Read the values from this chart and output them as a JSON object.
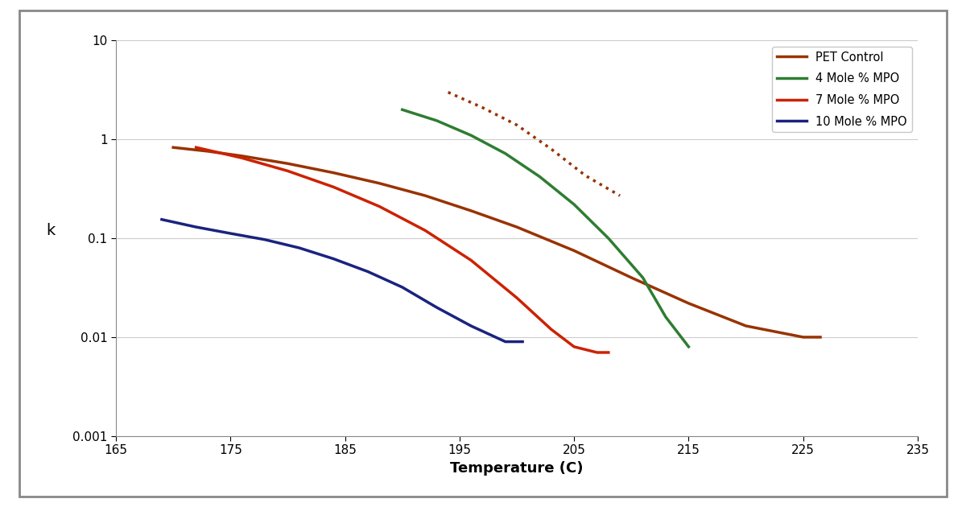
{
  "title": "",
  "xlabel": "Temperature (C)",
  "ylabel": "k",
  "xlim": [
    165,
    235
  ],
  "ylim_log": [
    0.001,
    10
  ],
  "xticks": [
    165,
    175,
    185,
    195,
    205,
    215,
    225,
    235
  ],
  "yticks": [
    0.001,
    0.01,
    0.1,
    1,
    10
  ],
  "background_outer": "#ffffff",
  "background_plot": "#ffffff",
  "border_color": "#888888",
  "series": [
    {
      "label": "PET Control",
      "color": "#993300",
      "linestyle": "solid",
      "linewidth": 2.5,
      "x": [
        170,
        173,
        176,
        180,
        184,
        188,
        192,
        196,
        200,
        205,
        210,
        215,
        220,
        225,
        226.5
      ],
      "y": [
        0.83,
        0.76,
        0.68,
        0.57,
        0.46,
        0.36,
        0.27,
        0.19,
        0.13,
        0.075,
        0.04,
        0.022,
        0.013,
        0.01,
        0.01
      ]
    },
    {
      "label": "4 Mole % MPO",
      "color": "#2E7D32",
      "linestyle": "solid",
      "linewidth": 2.5,
      "x": [
        190,
        193,
        196,
        199,
        202,
        205,
        208,
        211,
        213,
        215
      ],
      "y": [
        2.0,
        1.55,
        1.1,
        0.72,
        0.42,
        0.22,
        0.1,
        0.04,
        0.016,
        0.008
      ]
    },
    {
      "label": "7 Mole % MPO",
      "color": "#CC2200",
      "linestyle": "solid",
      "linewidth": 2.5,
      "x": [
        172,
        176,
        180,
        184,
        188,
        192,
        196,
        200,
        203,
        205,
        207,
        208
      ],
      "y": [
        0.83,
        0.65,
        0.48,
        0.33,
        0.21,
        0.12,
        0.06,
        0.025,
        0.012,
        0.008,
        0.007,
        0.007
      ]
    },
    {
      "label": "10 Mole % MPO",
      "color": "#1A237E",
      "linestyle": "solid",
      "linewidth": 2.5,
      "x": [
        169,
        172,
        175,
        178,
        181,
        184,
        187,
        190,
        193,
        196,
        199,
        200.5
      ],
      "y": [
        0.155,
        0.13,
        0.112,
        0.097,
        0.08,
        0.062,
        0.046,
        0.032,
        0.02,
        0.013,
        0.009,
        0.009
      ]
    }
  ],
  "dotted_series": {
    "color": "#993300",
    "linestyle": "dotted",
    "linewidth": 2.5,
    "x": [
      194,
      197,
      200,
      203,
      206,
      209
    ],
    "y": [
      3.0,
      2.1,
      1.4,
      0.8,
      0.43,
      0.27
    ]
  },
  "legend": {
    "loc": "upper right",
    "fontsize": 10.5,
    "frameon": true
  },
  "grid": {
    "color": "#cccccc",
    "linewidth": 0.8
  }
}
